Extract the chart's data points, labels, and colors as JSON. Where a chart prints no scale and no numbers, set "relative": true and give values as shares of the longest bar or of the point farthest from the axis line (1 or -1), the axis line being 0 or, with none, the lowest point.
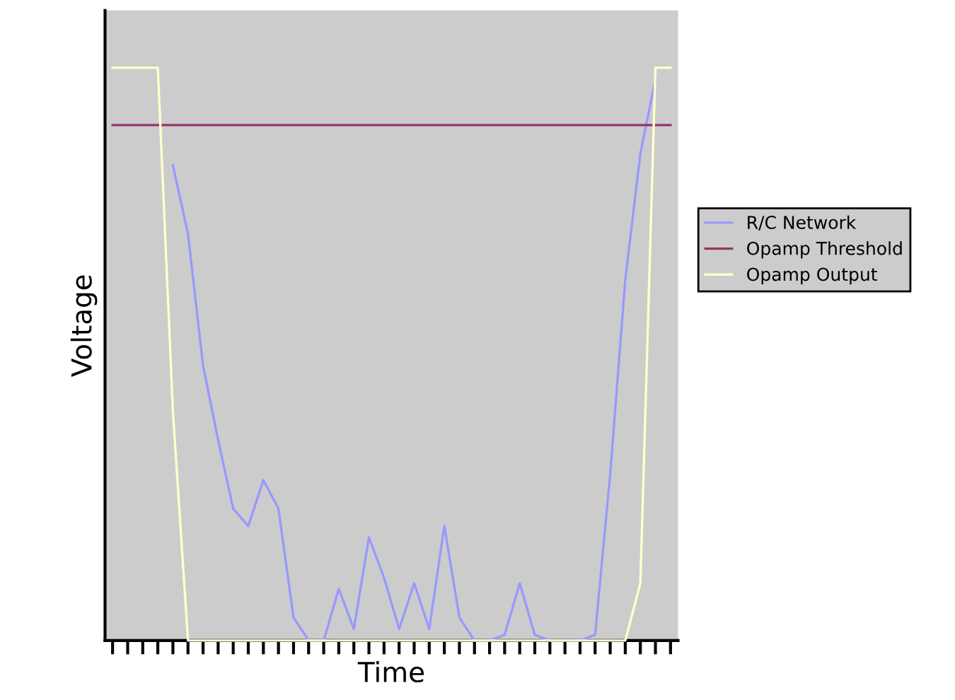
{
  "chart_data": {
    "type": "line",
    "xlabel": "Time",
    "ylabel": "Voltage",
    "relative": true,
    "legend": "right",
    "grid": false,
    "marker": "none",
    "line_style": "solid",
    "categories": [
      null,
      null,
      null,
      null,
      null,
      null,
      null,
      null,
      null,
      null,
      null,
      null,
      null,
      null,
      null,
      null,
      null,
      null,
      null,
      null,
      null,
      null,
      null,
      null,
      null,
      null,
      null,
      null,
      null,
      null,
      null,
      null,
      null,
      null,
      null,
      null,
      null,
      null
    ],
    "series": [
      {
        "name": "R/C Network",
        "color": "#9999ff",
        "values": [
          null,
          null,
          null,
          null,
          0.83,
          0.71,
          0.48,
          0.35,
          0.23,
          0.2,
          0.28,
          0.23,
          0.04,
          0,
          0,
          0.09,
          0.02,
          0.18,
          0.11,
          0.02,
          0.1,
          0.02,
          0.2,
          0.04,
          0,
          0,
          0.01,
          0.1,
          0.01,
          0,
          0,
          0,
          0.01,
          0.29,
          0.63,
          0.85,
          0.98,
          null
        ]
      },
      {
        "name": "Opamp Threshold",
        "color": "#993366",
        "values": [
          0.9,
          0.9,
          0.9,
          0.9,
          0.9,
          0.9,
          0.9,
          0.9,
          0.9,
          0.9,
          0.9,
          0.9,
          0.9,
          0.9,
          0.9,
          0.9,
          0.9,
          0.9,
          0.9,
          0.9,
          0.9,
          0.9,
          0.9,
          0.9,
          0.9,
          0.9,
          0.9,
          0.9,
          0.9,
          0.9,
          0.9,
          0.9,
          0.9,
          0.9,
          0.9,
          0.9,
          0.9,
          0.9
        ]
      },
      {
        "name": "Opamp Output",
        "color": "#ffffcc",
        "values": [
          1,
          1,
          1,
          1,
          0.4,
          0,
          0,
          0,
          0,
          0,
          0,
          0,
          0,
          0,
          0,
          0,
          0,
          0,
          0,
          0,
          0,
          0,
          0,
          0,
          0,
          0,
          0,
          0,
          0,
          0,
          0,
          0,
          0,
          0,
          0,
          0.1,
          1,
          1
        ]
      }
    ]
  }
}
